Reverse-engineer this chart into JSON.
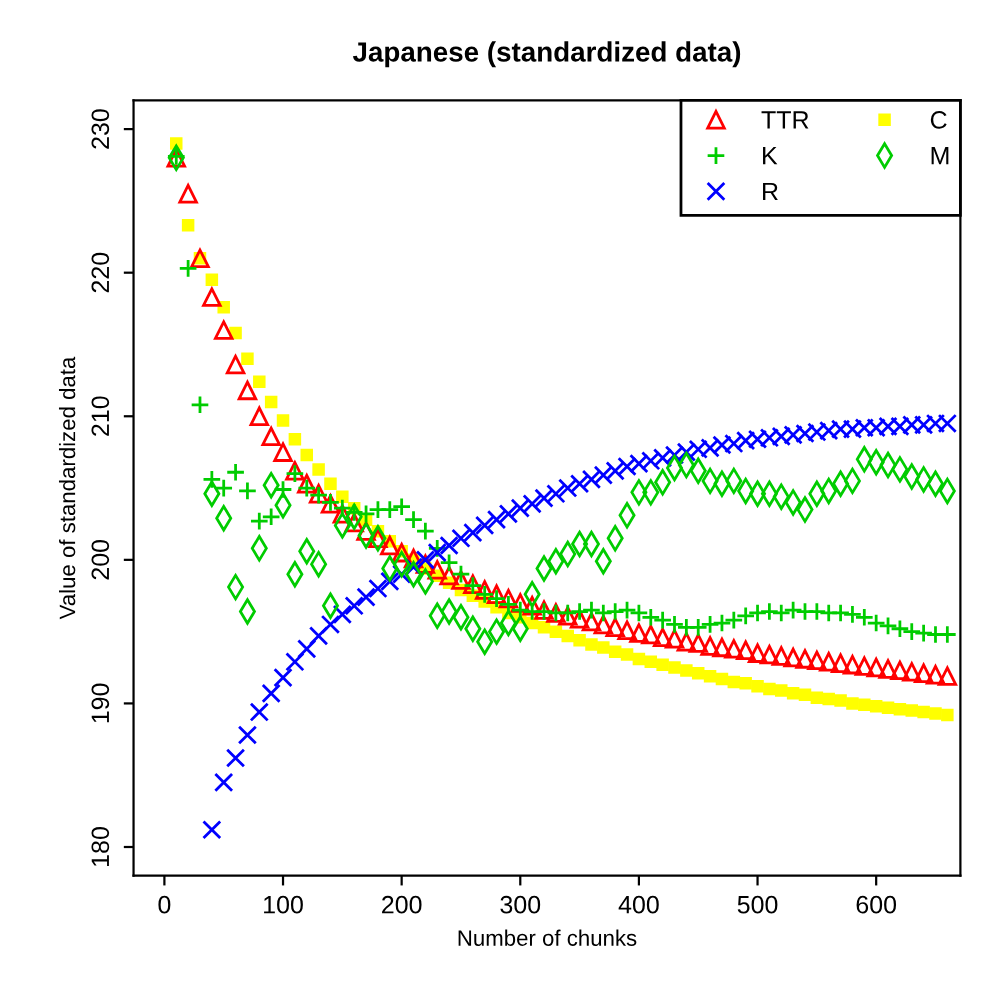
{
  "chart_data": {
    "type": "scatter",
    "title": "Japanese (standardized data)",
    "xlabel": "Number of chunks",
    "ylabel": "Value of standardized data",
    "x": [
      10,
      20,
      30,
      40,
      50,
      60,
      70,
      80,
      90,
      100,
      110,
      120,
      130,
      140,
      150,
      160,
      170,
      180,
      190,
      200,
      210,
      220,
      230,
      240,
      250,
      260,
      270,
      280,
      290,
      300,
      310,
      320,
      330,
      340,
      350,
      360,
      370,
      380,
      390,
      400,
      410,
      420,
      430,
      440,
      450,
      460,
      470,
      480,
      490,
      500,
      510,
      520,
      530,
      540,
      550,
      560,
      570,
      580,
      590,
      600,
      610,
      620,
      630,
      640,
      650,
      660
    ],
    "xlim": [
      -26,
      671
    ],
    "ylim": [
      178,
      232
    ],
    "xticks": [
      0,
      100,
      200,
      300,
      400,
      500,
      600
    ],
    "yticks": [
      180,
      190,
      200,
      210,
      220,
      230
    ],
    "grid": false,
    "legend": "top right",
    "series": [
      {
        "name": "TTR",
        "color": "#ff0000",
        "marker": "triangle",
        "values": [
          228,
          225.5,
          221,
          218.3,
          216,
          213.6,
          211.8,
          210,
          208.6,
          207.5,
          206.2,
          205.3,
          204.6,
          203.9,
          203.2,
          202.6,
          202.0,
          201.5,
          201.0,
          200.5,
          200.1,
          199.7,
          199.3,
          198.9,
          198.6,
          198.3,
          197.9,
          197.6,
          197.3,
          197.0,
          196.8,
          196.5,
          196.3,
          196.1,
          195.9,
          195.7,
          195.5,
          195.3,
          195.1,
          194.9,
          194.8,
          194.6,
          194.5,
          194.3,
          194.2,
          194.0,
          193.9,
          193.8,
          193.7,
          193.5,
          193.4,
          193.3,
          193.2,
          193.1,
          193.0,
          192.9,
          192.8,
          192.7,
          192.6,
          192.5,
          192.4,
          192.3,
          192.2,
          192.1,
          192.0,
          191.9
        ]
      },
      {
        "name": "K",
        "color": "#00cc00",
        "marker": "plus",
        "values": [
          228.1,
          220.3,
          210.8,
          205.6,
          205.0,
          206.1,
          204.8,
          202.7,
          203.0,
          204.9,
          206.0,
          205.0,
          204.5,
          204.0,
          203.6,
          203.3,
          203.2,
          203.5,
          203.5,
          203.7,
          202.8,
          202.0,
          200.8,
          199.8,
          199.0,
          198.2,
          197.6,
          197.3,
          196.9,
          196.5,
          196.4,
          196.4,
          196.3,
          196.3,
          196.4,
          196.5,
          196.3,
          196.4,
          196.5,
          196.3,
          196.0,
          195.8,
          195.5,
          195.3,
          195.3,
          195.5,
          195.6,
          195.8,
          196.1,
          196.3,
          196.4,
          196.3,
          196.5,
          196.4,
          196.4,
          196.3,
          196.3,
          196.2,
          196.0,
          195.6,
          195.4,
          195.2,
          195.0,
          194.9,
          194.8,
          194.8
        ]
      },
      {
        "name": "R",
        "color": "#0000ff",
        "marker": "x",
        "values": [
          null,
          null,
          null,
          181.2,
          184.5,
          186.2,
          187.8,
          189.4,
          190.7,
          191.8,
          192.9,
          193.8,
          194.7,
          195.5,
          196.2,
          196.8,
          197.4,
          198.0,
          198.5,
          199.0,
          199.5,
          200.0,
          200.5,
          201.0,
          201.5,
          201.9,
          202.4,
          202.8,
          203.2,
          203.6,
          203.9,
          204.3,
          204.6,
          205.0,
          205.3,
          205.6,
          205.9,
          206.2,
          206.5,
          206.7,
          206.9,
          207.1,
          207.3,
          207.5,
          207.7,
          207.8,
          208.0,
          208.1,
          208.3,
          208.4,
          208.5,
          208.6,
          208.7,
          208.8,
          208.9,
          209.0,
          209.1,
          209.1,
          209.2,
          209.2,
          209.3,
          209.3,
          209.4,
          209.4,
          209.5,
          209.5
        ]
      },
      {
        "name": "C",
        "color": "#ffff00",
        "marker": "square",
        "values": [
          229,
          223.3,
          221,
          219.5,
          217.6,
          215.8,
          214,
          212.4,
          211,
          209.7,
          208.4,
          207.3,
          206.3,
          205.3,
          204.4,
          203.6,
          202.8,
          202.0,
          201.3,
          200.6,
          200.0,
          199.4,
          198.9,
          198.4,
          197.9,
          197.5,
          197.1,
          196.7,
          196.3,
          196.0,
          195.6,
          195.3,
          195.0,
          194.7,
          194.4,
          194.1,
          193.9,
          193.6,
          193.4,
          193.1,
          192.9,
          192.7,
          192.5,
          192.3,
          192.1,
          191.9,
          191.7,
          191.5,
          191.4,
          191.2,
          191.0,
          190.9,
          190.7,
          190.6,
          190.4,
          190.3,
          190.2,
          190.0,
          189.9,
          189.8,
          189.7,
          189.6,
          189.5,
          189.4,
          189.3,
          189.2
        ]
      },
      {
        "name": "M",
        "color": "#00cc00",
        "marker": "diamond",
        "values": [
          228.0,
          null,
          null,
          204.6,
          202.9,
          198.1,
          196.4,
          200.8,
          205.2,
          203.8,
          199.0,
          200.6,
          199.7,
          196.8,
          202.4,
          203.0,
          201.7,
          201.5,
          199.4,
          199.7,
          199.0,
          198.5,
          196.1,
          196.4,
          196.0,
          195.2,
          194.3,
          195.0,
          195.6,
          195.2,
          197.6,
          199.4,
          199.9,
          200.4,
          201.1,
          201.1,
          199.9,
          201.5,
          203.1,
          204.7,
          204.7,
          205.4,
          206.4,
          206.6,
          206.2,
          205.5,
          205.3,
          205.5,
          204.8,
          204.6,
          204.6,
          204.4,
          204.0,
          203.5,
          204.6,
          204.8,
          205.3,
          205.5,
          207.0,
          206.8,
          206.6,
          206.3,
          205.8,
          205.6,
          205.3,
          204.8
        ]
      }
    ]
  }
}
